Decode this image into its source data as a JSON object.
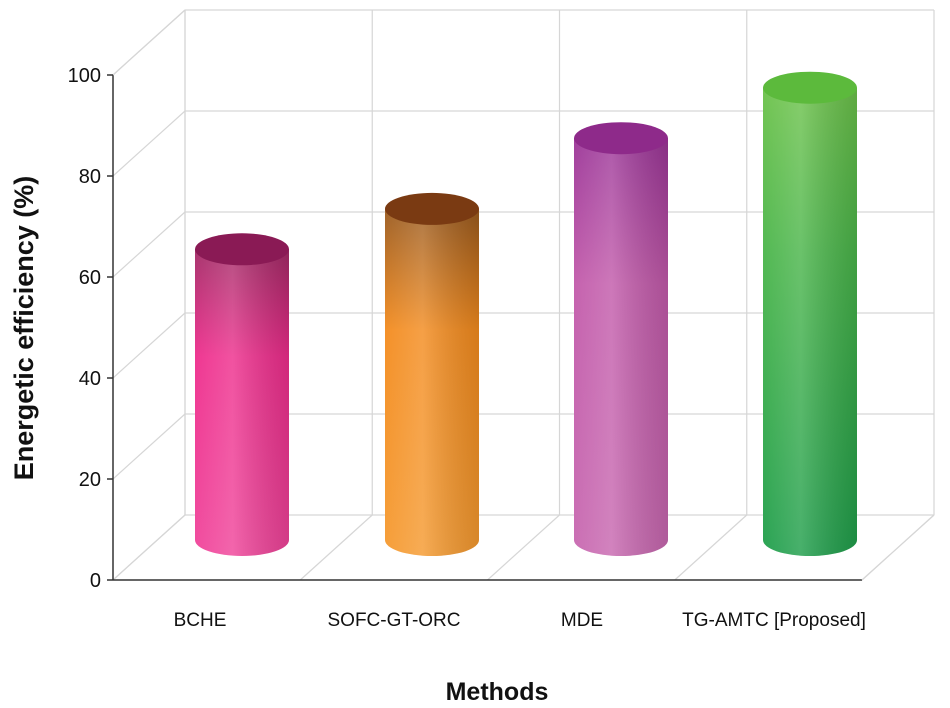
{
  "chart_data": {
    "type": "bar",
    "style": "3d-cylinder",
    "title": "",
    "xlabel": "Methods",
    "ylabel": "Energetic efficiency (%)",
    "categories": [
      "BCHE",
      "SOFC-GT-ORC",
      "MDE",
      "TG-AMTC [Proposed]"
    ],
    "values": [
      64,
      72,
      86,
      96
    ],
    "ylim": [
      0,
      100
    ],
    "yticks": [
      "0",
      "20",
      "40",
      "60",
      "80",
      "100"
    ],
    "grid": true,
    "colors": [
      {
        "top": "#8a1a55",
        "upper": "#a32a66",
        "main": "#ee2d8c",
        "lower": "#f0449a"
      },
      {
        "top": "#7a3a12",
        "upper": "#9a5a1e",
        "main": "#f38b1e",
        "lower": "#f59a30"
      },
      {
        "top": "#8e2a8a",
        "upper": "#9b3597",
        "main": "#c25aaa",
        "lower": "#c868b0"
      },
      {
        "top": "#5cba3c",
        "upper": "#6cc24a",
        "main": "#4ab54a",
        "lower": "#1f9e4b"
      }
    ]
  }
}
